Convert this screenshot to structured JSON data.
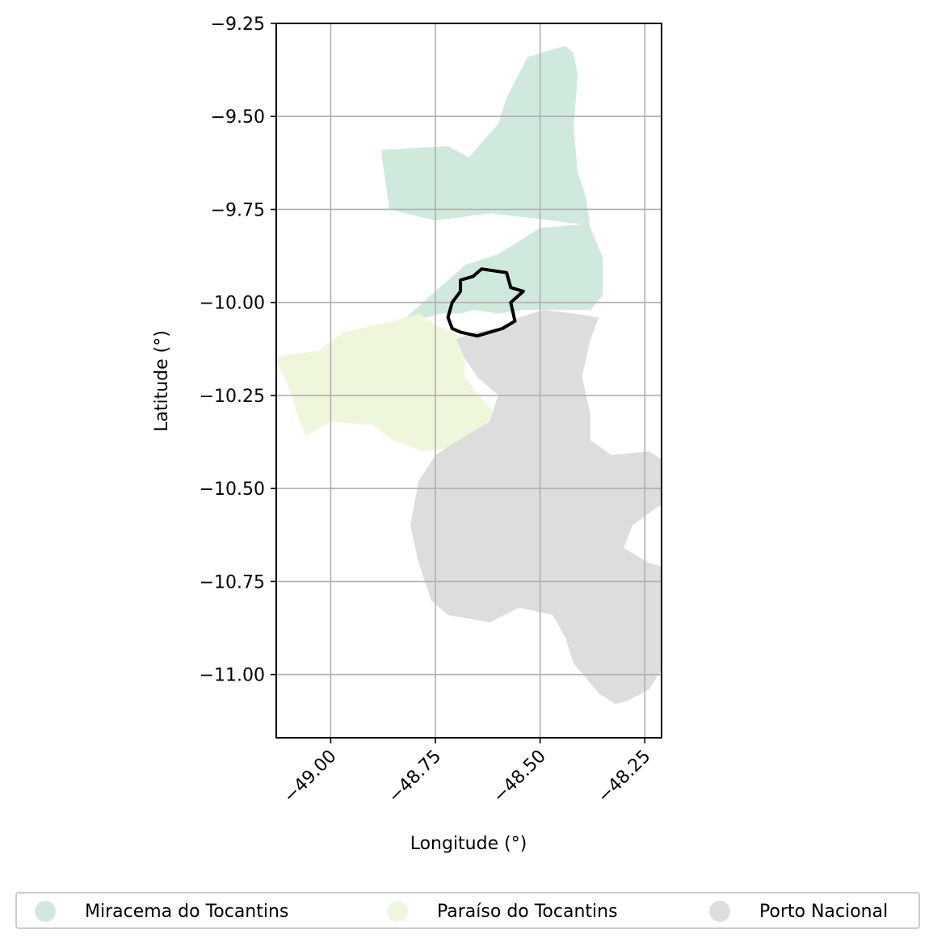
{
  "chart_data": {
    "type": "choropleth",
    "xlabel": "Longitude (°)",
    "ylabel": "Latitude (°)",
    "xlim": [
      -49.13,
      -48.21
    ],
    "ylim": [
      -11.17,
      -9.25
    ],
    "xticks": [
      -49.0,
      -48.75,
      -48.5,
      -48.25
    ],
    "xtick_labels": [
      "−49.00",
      "−48.75",
      "−48.50",
      "−48.25"
    ],
    "yticks": [
      -9.25,
      -9.5,
      -9.75,
      -10.0,
      -10.25,
      -10.5,
      -10.75,
      -11.0
    ],
    "ytick_labels": [
      "−9.25",
      "−9.50",
      "−9.75",
      "−10.00",
      "−10.25",
      "−10.50",
      "−10.75",
      "−11.00"
    ],
    "grid": true,
    "legend_position": "bottom",
    "regions": [
      {
        "name": "Miracema do Tocantins",
        "color": "#cfeadc",
        "outline": [
          [
            -48.53,
            -9.34
          ],
          [
            -48.44,
            -9.31
          ],
          [
            -48.42,
            -9.33
          ],
          [
            -48.41,
            -9.39
          ],
          [
            -48.42,
            -9.53
          ],
          [
            -48.41,
            -9.65
          ],
          [
            -48.39,
            -9.72
          ],
          [
            -48.38,
            -9.8
          ],
          [
            -48.35,
            -9.88
          ],
          [
            -48.35,
            -9.98
          ],
          [
            -48.38,
            -10.02
          ],
          [
            -48.45,
            -10.02
          ],
          [
            -48.54,
            -10.02
          ],
          [
            -48.6,
            -10.03
          ],
          [
            -48.66,
            -10.02
          ],
          [
            -48.69,
            -10.03
          ],
          [
            -48.74,
            -10.03
          ],
          [
            -48.77,
            -10.04
          ],
          [
            -48.83,
            -10.05
          ],
          [
            -48.73,
            -9.95
          ],
          [
            -48.68,
            -9.9
          ],
          [
            -48.6,
            -9.87
          ],
          [
            -48.5,
            -9.8
          ],
          [
            -48.4,
            -9.79
          ],
          [
            -48.62,
            -9.76
          ],
          [
            -48.75,
            -9.78
          ],
          [
            -48.86,
            -9.75
          ],
          [
            -48.87,
            -9.67
          ],
          [
            -48.88,
            -9.59
          ],
          [
            -48.72,
            -9.58
          ],
          [
            -48.67,
            -9.61
          ],
          [
            -48.6,
            -9.52
          ],
          [
            -48.58,
            -9.45
          ]
        ]
      },
      {
        "name": "Paraíso do Tocantins",
        "color": "#eef7dc",
        "outline": [
          [
            -48.79,
            -10.03
          ],
          [
            -48.75,
            -10.06
          ],
          [
            -48.69,
            -10.09
          ],
          [
            -48.68,
            -10.14
          ],
          [
            -48.68,
            -10.2
          ],
          [
            -48.63,
            -10.27
          ],
          [
            -48.59,
            -10.32
          ],
          [
            -48.62,
            -10.36
          ],
          [
            -48.7,
            -10.39
          ],
          [
            -48.78,
            -10.4
          ],
          [
            -48.85,
            -10.37
          ],
          [
            -48.9,
            -10.33
          ],
          [
            -49.0,
            -10.32
          ],
          [
            -49.06,
            -10.36
          ],
          [
            -49.08,
            -10.3
          ],
          [
            -49.1,
            -10.23
          ],
          [
            -49.12,
            -10.18
          ],
          [
            -49.15,
            -10.15
          ],
          [
            -49.1,
            -10.14
          ],
          [
            -49.03,
            -10.13
          ],
          [
            -48.97,
            -10.08
          ],
          [
            -48.89,
            -10.06
          ],
          [
            -48.85,
            -10.05
          ]
        ]
      },
      {
        "name": "Porto Nacional",
        "color": "#dddddd",
        "outline": [
          [
            -48.7,
            -10.1
          ],
          [
            -48.66,
            -10.08
          ],
          [
            -48.6,
            -10.07
          ],
          [
            -48.55,
            -10.04
          ],
          [
            -48.49,
            -10.02
          ],
          [
            -48.42,
            -10.03
          ],
          [
            -48.36,
            -10.04
          ],
          [
            -48.38,
            -10.1
          ],
          [
            -48.4,
            -10.2
          ],
          [
            -48.38,
            -10.3
          ],
          [
            -48.38,
            -10.37
          ],
          [
            -48.33,
            -10.41
          ],
          [
            -48.24,
            -10.4
          ],
          [
            -48.17,
            -10.45
          ],
          [
            -48.15,
            -10.52
          ],
          [
            -48.22,
            -10.55
          ],
          [
            -48.28,
            -10.6
          ],
          [
            -48.3,
            -10.66
          ],
          [
            -48.24,
            -10.7
          ],
          [
            -48.18,
            -10.72
          ],
          [
            -48.17,
            -10.8
          ],
          [
            -48.21,
            -10.87
          ],
          [
            -48.2,
            -10.97
          ],
          [
            -48.24,
            -11.04
          ],
          [
            -48.29,
            -11.07
          ],
          [
            -48.32,
            -11.08
          ],
          [
            -48.36,
            -11.05
          ],
          [
            -48.42,
            -10.97
          ],
          [
            -48.44,
            -10.9
          ],
          [
            -48.47,
            -10.84
          ],
          [
            -48.55,
            -10.82
          ],
          [
            -48.62,
            -10.86
          ],
          [
            -48.72,
            -10.84
          ],
          [
            -48.76,
            -10.8
          ],
          [
            -48.79,
            -10.7
          ],
          [
            -48.81,
            -10.6
          ],
          [
            -48.79,
            -10.48
          ],
          [
            -48.75,
            -10.41
          ],
          [
            -48.68,
            -10.36
          ],
          [
            -48.62,
            -10.32
          ],
          [
            -48.6,
            -10.25
          ],
          [
            -48.65,
            -10.2
          ],
          [
            -48.68,
            -10.15
          ]
        ]
      }
    ],
    "highlight": {
      "name": "",
      "outline": [
        [
          -48.64,
          -9.91
        ],
        [
          -48.58,
          -9.92
        ],
        [
          -48.57,
          -9.96
        ],
        [
          -48.54,
          -9.97
        ],
        [
          -48.57,
          -10.0
        ],
        [
          -48.56,
          -10.05
        ],
        [
          -48.59,
          -10.07
        ],
        [
          -48.62,
          -10.08
        ],
        [
          -48.65,
          -10.09
        ],
        [
          -48.69,
          -10.08
        ],
        [
          -48.71,
          -10.07
        ],
        [
          -48.72,
          -10.04
        ],
        [
          -48.71,
          -10.0
        ],
        [
          -48.69,
          -9.97
        ],
        [
          -48.69,
          -9.94
        ],
        [
          -48.66,
          -9.93
        ]
      ]
    }
  },
  "legend": {
    "items": [
      {
        "label": "Miracema do Tocantins",
        "color": "#cfeadc"
      },
      {
        "label": "Paraíso do Tocantins",
        "color": "#eef7dc"
      },
      {
        "label": "Porto Nacional",
        "color": "#dddddd"
      }
    ]
  }
}
